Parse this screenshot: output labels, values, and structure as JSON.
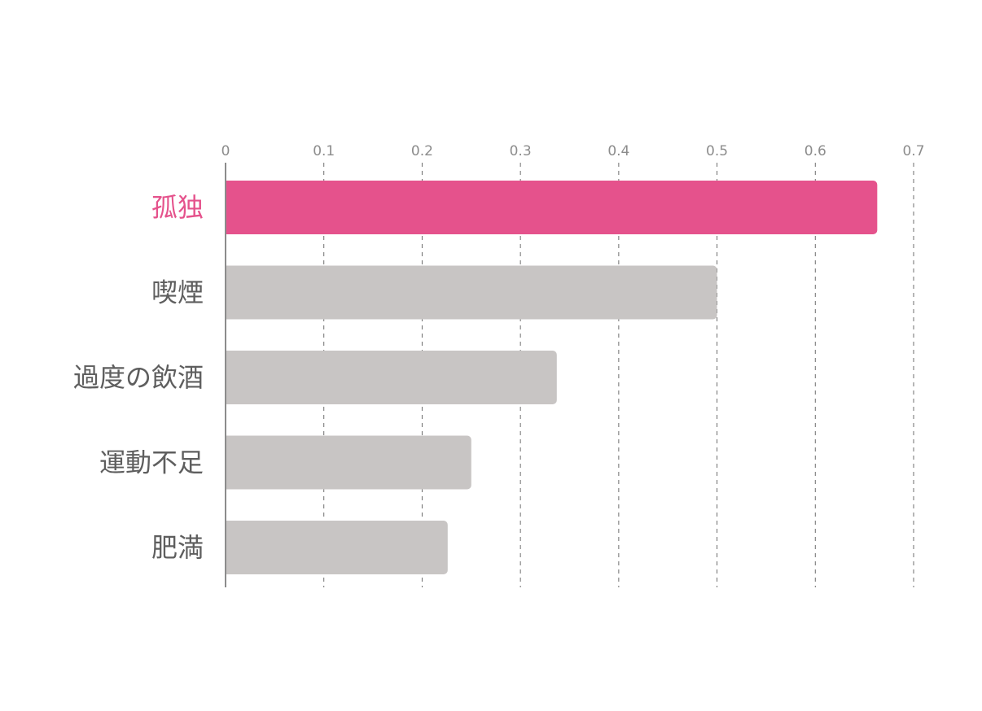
{
  "chart_data": {
    "type": "bar",
    "orientation": "horizontal",
    "categories": [
      "孤独",
      "喫煙",
      "過度の飲酒",
      "運動不足",
      "肥満"
    ],
    "values": [
      0.663,
      0.5,
      0.337,
      0.25,
      0.226
    ],
    "highlight_index": 0,
    "xlim": [
      0,
      0.7
    ],
    "xticks": [
      "0",
      "0.1",
      "0.2",
      "0.3",
      "0.4",
      "0.5",
      "0.6",
      "0.7"
    ],
    "xtick_values": [
      0,
      0.1,
      0.2,
      0.3,
      0.4,
      0.5,
      0.6,
      0.7
    ],
    "axis_position": "top",
    "grid": true,
    "grid_style": "dashed",
    "legend": "none",
    "title": "",
    "xlabel": "",
    "ylabel": "",
    "colors": {
      "highlight": "#e5528c",
      "default_bar": "#c8c5c4",
      "highlight_label": "#e5528c",
      "default_label": "#5e5e5e",
      "tick_label": "#8c8c8c",
      "grid": "#6e6e6e",
      "axis": "#8c8c8c"
    }
  }
}
